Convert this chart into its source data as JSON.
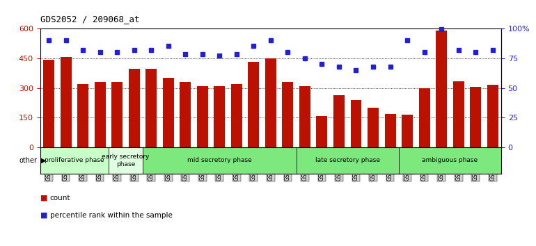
{
  "title": "GDS2052 / 209068_at",
  "samples": [
    "GSM109814",
    "GSM109815",
    "GSM109816",
    "GSM109817",
    "GSM109820",
    "GSM109821",
    "GSM109822",
    "GSM109824",
    "GSM109825",
    "GSM109826",
    "GSM109827",
    "GSM109828",
    "GSM109829",
    "GSM109830",
    "GSM109831",
    "GSM109834",
    "GSM109835",
    "GSM109836",
    "GSM109837",
    "GSM109838",
    "GSM109839",
    "GSM109818",
    "GSM109819",
    "GSM109823",
    "GSM109832",
    "GSM109833",
    "GSM109840"
  ],
  "counts": [
    440,
    455,
    320,
    330,
    330,
    395,
    395,
    350,
    330,
    310,
    310,
    320,
    430,
    450,
    330,
    310,
    160,
    265,
    240,
    200,
    170,
    165,
    300,
    590,
    335,
    305,
    315
  ],
  "percentiles": [
    90,
    90,
    82,
    80,
    80,
    82,
    82,
    85,
    78,
    78,
    77,
    78,
    85,
    90,
    80,
    75,
    70,
    68,
    65,
    68,
    68,
    90,
    80,
    99,
    82,
    80,
    82
  ],
  "phases": [
    {
      "label": "proliferative phase",
      "start": 0,
      "end": 4,
      "color": "#c8ffc8"
    },
    {
      "label": "early secretory\nphase",
      "start": 4,
      "end": 6,
      "color": "#e0ffe0"
    },
    {
      "label": "mid secretory phase",
      "start": 6,
      "end": 15,
      "color": "#7de87d"
    },
    {
      "label": "late secretory phase",
      "start": 15,
      "end": 21,
      "color": "#7de87d"
    },
    {
      "label": "ambiguous phase",
      "start": 21,
      "end": 27,
      "color": "#7de87d"
    }
  ],
  "bar_color": "#bb1100",
  "dot_color": "#2222cc",
  "ylim_left": [
    0,
    600
  ],
  "ylim_right": [
    0,
    100
  ],
  "yticks_left": [
    0,
    150,
    300,
    450,
    600
  ],
  "yticks_right": [
    0,
    25,
    50,
    75,
    100
  ],
  "plot_bg_color": "#ffffff",
  "tick_bg_color": "#d0d0d0",
  "other_label": "other"
}
